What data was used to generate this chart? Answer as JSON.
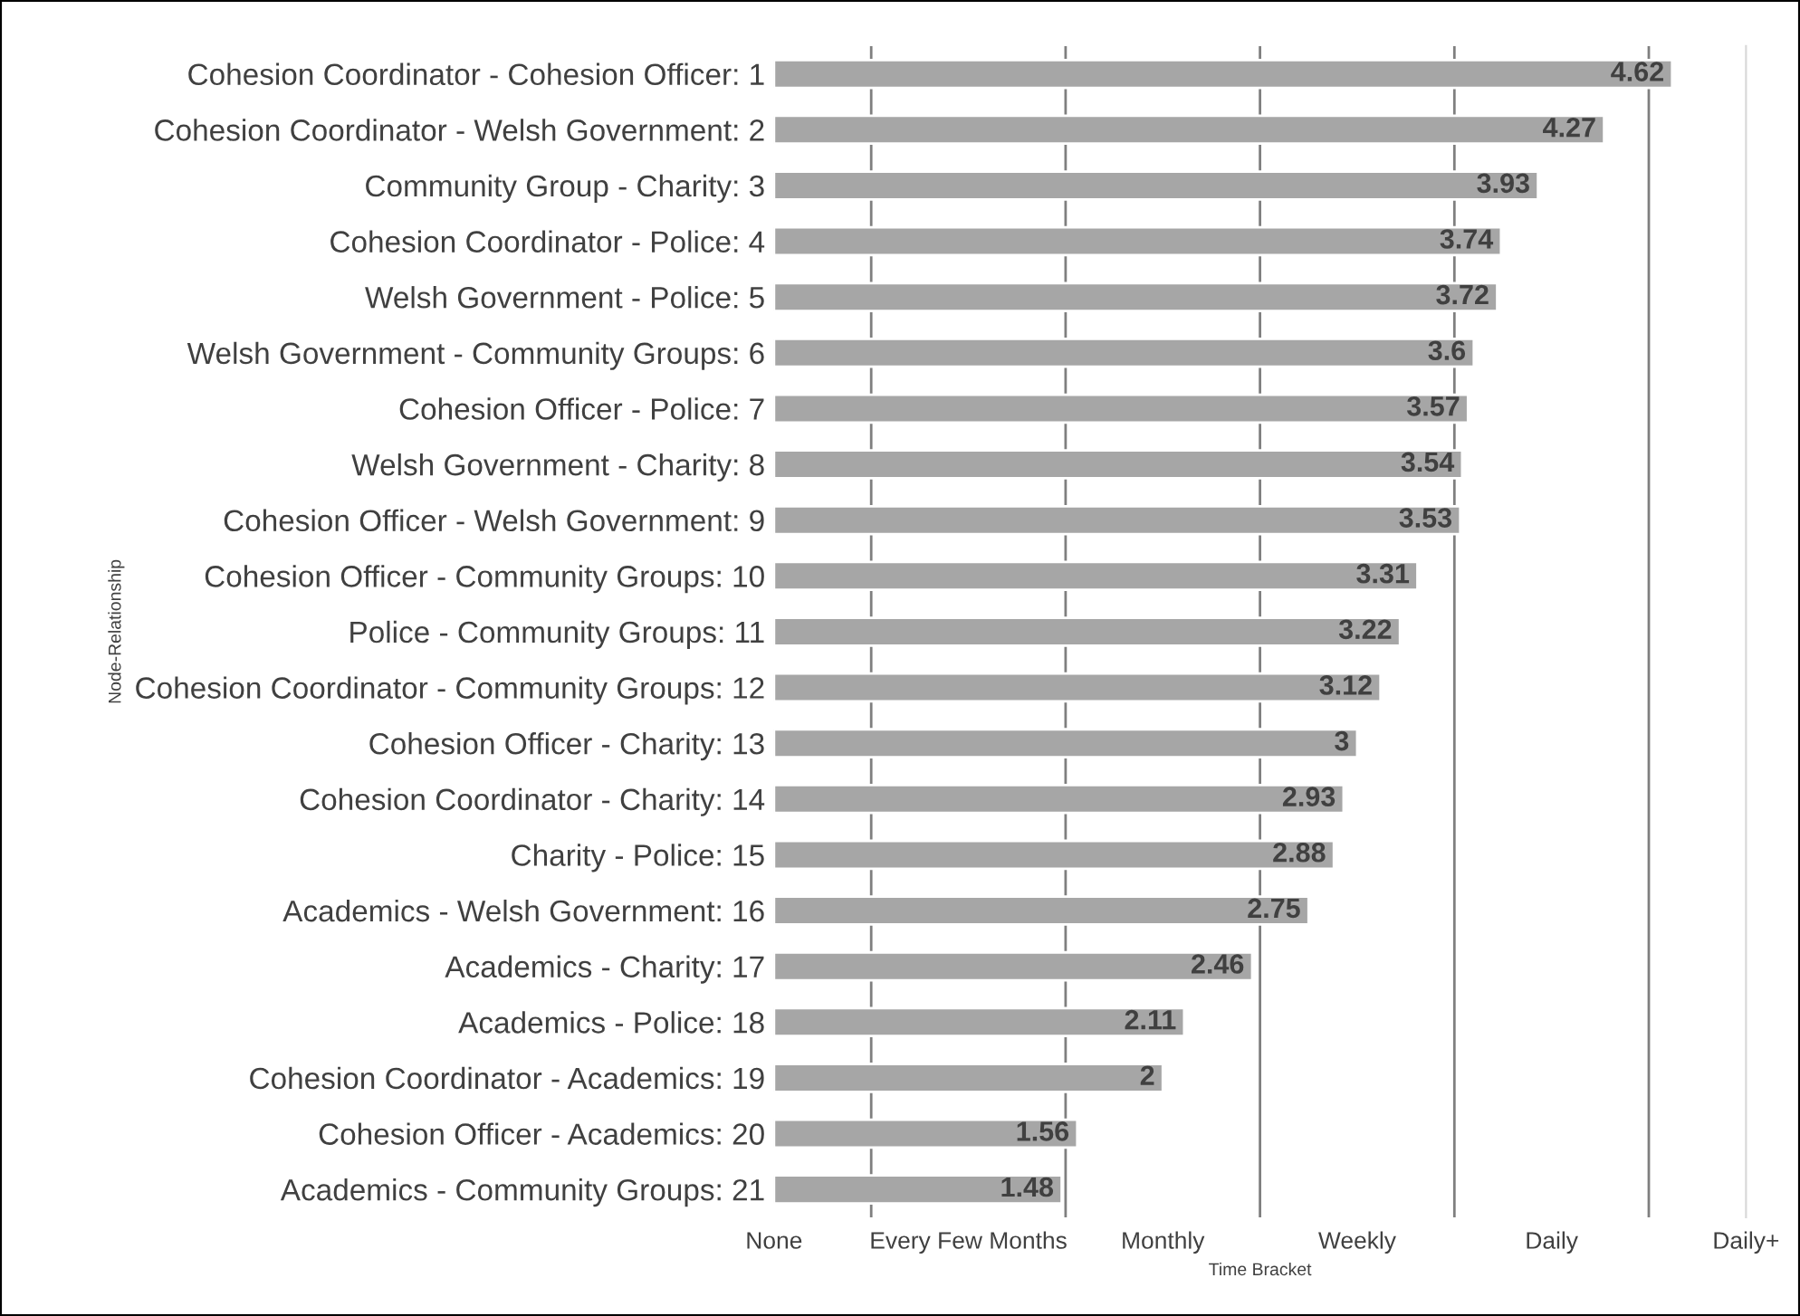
{
  "chart_data": {
    "type": "bar",
    "orientation": "horizontal",
    "xlabel": "Time Bracket",
    "ylabel": "Node-Relationship",
    "categories": [
      "Cohesion Coordinator - Cohesion Officer: 1",
      "Cohesion Coordinator - Welsh Government: 2",
      "Community Group - Charity: 3",
      "Cohesion Coordinator - Police: 4",
      "Welsh Government - Police: 5",
      "Welsh Government - Community Groups: 6",
      "Cohesion Officer - Police: 7",
      "Welsh Government - Charity: 8",
      "Cohesion Officer - Welsh Government: 9",
      "Cohesion Officer - Community Groups: 10",
      "Police - Community Groups: 11",
      "Cohesion Coordinator - Community Groups: 12",
      "Cohesion Officer - Charity: 13",
      "Cohesion Coordinator - Charity: 14",
      "Charity - Police: 15",
      "Academics - Welsh Government: 16",
      "Academics - Charity: 17",
      "Academics - Police: 18",
      "Cohesion Coordinator - Academics: 19",
      "Cohesion Officer - Academics: 20",
      "Academics - Community Groups: 21"
    ],
    "values": [
      4.62,
      4.27,
      3.93,
      3.74,
      3.72,
      3.6,
      3.57,
      3.54,
      3.53,
      3.31,
      3.22,
      3.12,
      3,
      2.93,
      2.88,
      2.75,
      2.46,
      2.11,
      2,
      1.56,
      1.48
    ],
    "color": "#a6a6a6",
    "data_labels": true,
    "xlim": [
      0,
      5
    ],
    "annotations": [
      "None",
      "Every Few Months",
      "Monthly",
      "Weekly",
      "Daily",
      "Daily+"
    ],
    "ref_lines": [
      {
        "axis": "x",
        "value": 0.5,
        "color": "#7f7f7f"
      },
      {
        "axis": "x",
        "value": 1.5,
        "color": "#7f7f7f"
      },
      {
        "axis": "x",
        "value": 2.5,
        "color": "#7f7f7f"
      },
      {
        "axis": "x",
        "value": 3.5,
        "color": "#7f7f7f"
      },
      {
        "axis": "x",
        "value": 4.5,
        "color": "#7f7f7f"
      }
    ],
    "grid": false,
    "legend": false
  }
}
